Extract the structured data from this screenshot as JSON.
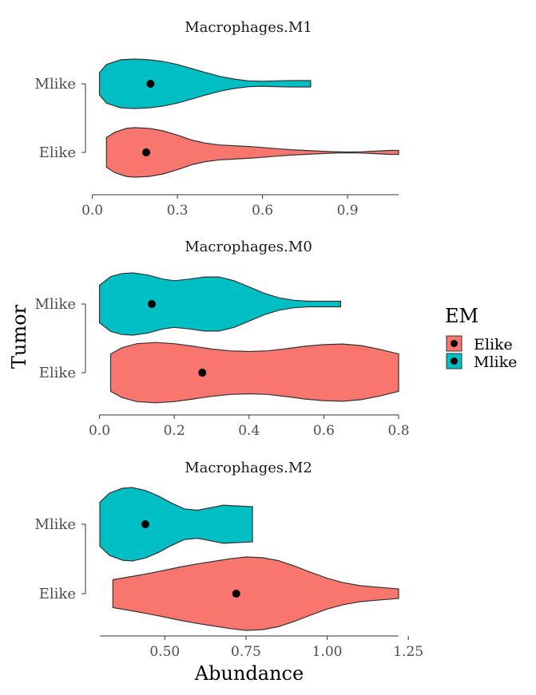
{
  "chart_data": {
    "type": "violin",
    "orientation": "horizontal",
    "xlabel": "Abundance",
    "ylabel": "Tumor",
    "legend": {
      "title": "EM",
      "placement": "right",
      "entries": [
        {
          "label": "Elike",
          "color": "#F8766D"
        },
        {
          "label": "Mlike",
          "color": "#00BFC4"
        }
      ]
    },
    "grid": false,
    "panels": [
      {
        "title": "Macrophages.M1",
        "xlim": [
          0.0,
          1.08
        ],
        "xticks": [
          0.0,
          0.3,
          0.6,
          0.9
        ],
        "xtick_labels": [
          "0.0",
          "0.3",
          "0.6",
          "0.9"
        ],
        "categories": [
          "Mlike",
          "Elike"
        ],
        "series": [
          {
            "category": "Mlike",
            "group": "Mlike",
            "color": "#00BFC4",
            "min": 0.025,
            "max": 0.77,
            "mean": 0.205,
            "density": [
              [
                0.025,
                0.45
              ],
              [
                0.05,
                0.78
              ],
              [
                0.1,
                0.97
              ],
              [
                0.15,
                1.0
              ],
              [
                0.2,
                0.97
              ],
              [
                0.25,
                0.9
              ],
              [
                0.3,
                0.78
              ],
              [
                0.35,
                0.62
              ],
              [
                0.4,
                0.45
              ],
              [
                0.45,
                0.3
              ],
              [
                0.5,
                0.19
              ],
              [
                0.55,
                0.12
              ],
              [
                0.6,
                0.1
              ],
              [
                0.65,
                0.12
              ],
              [
                0.7,
                0.13
              ],
              [
                0.77,
                0.13
              ]
            ]
          },
          {
            "category": "Elike",
            "group": "Elike",
            "color": "#F8766D",
            "min": 0.05,
            "max": 1.08,
            "mean": 0.19,
            "density": [
              [
                0.05,
                0.6
              ],
              [
                0.08,
                0.82
              ],
              [
                0.12,
                0.97
              ],
              [
                0.15,
                1.0
              ],
              [
                0.2,
                0.97
              ],
              [
                0.25,
                0.87
              ],
              [
                0.3,
                0.7
              ],
              [
                0.35,
                0.5
              ],
              [
                0.4,
                0.37
              ],
              [
                0.45,
                0.3
              ],
              [
                0.5,
                0.27
              ],
              [
                0.55,
                0.24
              ],
              [
                0.6,
                0.2
              ],
              [
                0.65,
                0.15
              ],
              [
                0.7,
                0.11
              ],
              [
                0.75,
                0.08
              ],
              [
                0.8,
                0.05
              ],
              [
                0.85,
                0.03
              ],
              [
                0.9,
                0.015
              ],
              [
                0.95,
                0.025
              ],
              [
                1.0,
                0.05
              ],
              [
                1.05,
                0.08
              ],
              [
                1.08,
                0.08
              ]
            ]
          }
        ]
      },
      {
        "title": "Macrophages.M0",
        "xlim": [
          0.0,
          0.8
        ],
        "xticks": [
          0.0,
          0.2,
          0.4,
          0.6,
          0.8
        ],
        "xtick_labels": [
          "0.0",
          "0.2",
          "0.4",
          "0.6",
          "0.8"
        ],
        "categories": [
          "Mlike",
          "Elike"
        ],
        "series": [
          {
            "category": "Mlike",
            "group": "Mlike",
            "color": "#00BFC4",
            "min": 0.0,
            "max": 0.645,
            "mean": 0.14,
            "density": [
              [
                0.0,
                0.6
              ],
              [
                0.03,
                0.88
              ],
              [
                0.06,
                0.98
              ],
              [
                0.09,
                1.0
              ],
              [
                0.13,
                0.93
              ],
              [
                0.17,
                0.8
              ],
              [
                0.2,
                0.75
              ],
              [
                0.24,
                0.8
              ],
              [
                0.28,
                0.87
              ],
              [
                0.32,
                0.87
              ],
              [
                0.36,
                0.75
              ],
              [
                0.4,
                0.55
              ],
              [
                0.44,
                0.35
              ],
              [
                0.48,
                0.2
              ],
              [
                0.52,
                0.12
              ],
              [
                0.56,
                0.09
              ],
              [
                0.6,
                0.09
              ],
              [
                0.645,
                0.09
              ]
            ]
          },
          {
            "category": "Elike",
            "group": "Elike",
            "color": "#F8766D",
            "min": 0.03,
            "max": 0.8,
            "mean": 0.275,
            "density": [
              [
                0.03,
                0.6
              ],
              [
                0.06,
                0.8
              ],
              [
                0.1,
                0.93
              ],
              [
                0.15,
                0.97
              ],
              [
                0.2,
                0.93
              ],
              [
                0.25,
                0.85
              ],
              [
                0.3,
                0.76
              ],
              [
                0.35,
                0.7
              ],
              [
                0.4,
                0.68
              ],
              [
                0.45,
                0.7
              ],
              [
                0.5,
                0.77
              ],
              [
                0.55,
                0.85
              ],
              [
                0.6,
                0.9
              ],
              [
                0.65,
                0.92
              ],
              [
                0.7,
                0.87
              ],
              [
                0.75,
                0.75
              ],
              [
                0.8,
                0.6
              ]
            ]
          }
        ]
      },
      {
        "title": "Macrophages.M2",
        "xlim": [
          0.3,
          1.22
        ],
        "xticks": [
          0.5,
          0.75,
          1.0,
          1.25
        ],
        "xtick_labels": [
          "0.50",
          "0.75",
          "1.00",
          "1.25"
        ],
        "categories": [
          "Mlike",
          "Elike"
        ],
        "series": [
          {
            "category": "Mlike",
            "group": "Mlike",
            "color": "#00BFC4",
            "min": 0.3,
            "max": 0.77,
            "mean": 0.44,
            "density": [
              [
                0.3,
                0.6
              ],
              [
                0.33,
                0.85
              ],
              [
                0.37,
                0.98
              ],
              [
                0.4,
                1.0
              ],
              [
                0.44,
                0.92
              ],
              [
                0.48,
                0.77
              ],
              [
                0.52,
                0.58
              ],
              [
                0.56,
                0.42
              ],
              [
                0.6,
                0.38
              ],
              [
                0.64,
                0.45
              ],
              [
                0.68,
                0.52
              ],
              [
                0.72,
                0.5
              ],
              [
                0.77,
                0.48
              ]
            ]
          },
          {
            "category": "Elike",
            "group": "Elike",
            "color": "#F8766D",
            "min": 0.34,
            "max": 1.22,
            "mean": 0.72,
            "density": [
              [
                0.34,
                0.38
              ],
              [
                0.4,
                0.47
              ],
              [
                0.45,
                0.55
              ],
              [
                0.5,
                0.64
              ],
              [
                0.55,
                0.73
              ],
              [
                0.6,
                0.81
              ],
              [
                0.65,
                0.88
              ],
              [
                0.7,
                0.95
              ],
              [
                0.75,
                1.0
              ],
              [
                0.8,
                0.98
              ],
              [
                0.85,
                0.9
              ],
              [
                0.9,
                0.75
              ],
              [
                0.95,
                0.58
              ],
              [
                1.0,
                0.42
              ],
              [
                1.05,
                0.3
              ],
              [
                1.1,
                0.22
              ],
              [
                1.15,
                0.18
              ],
              [
                1.22,
                0.13
              ]
            ]
          }
        ]
      }
    ]
  }
}
